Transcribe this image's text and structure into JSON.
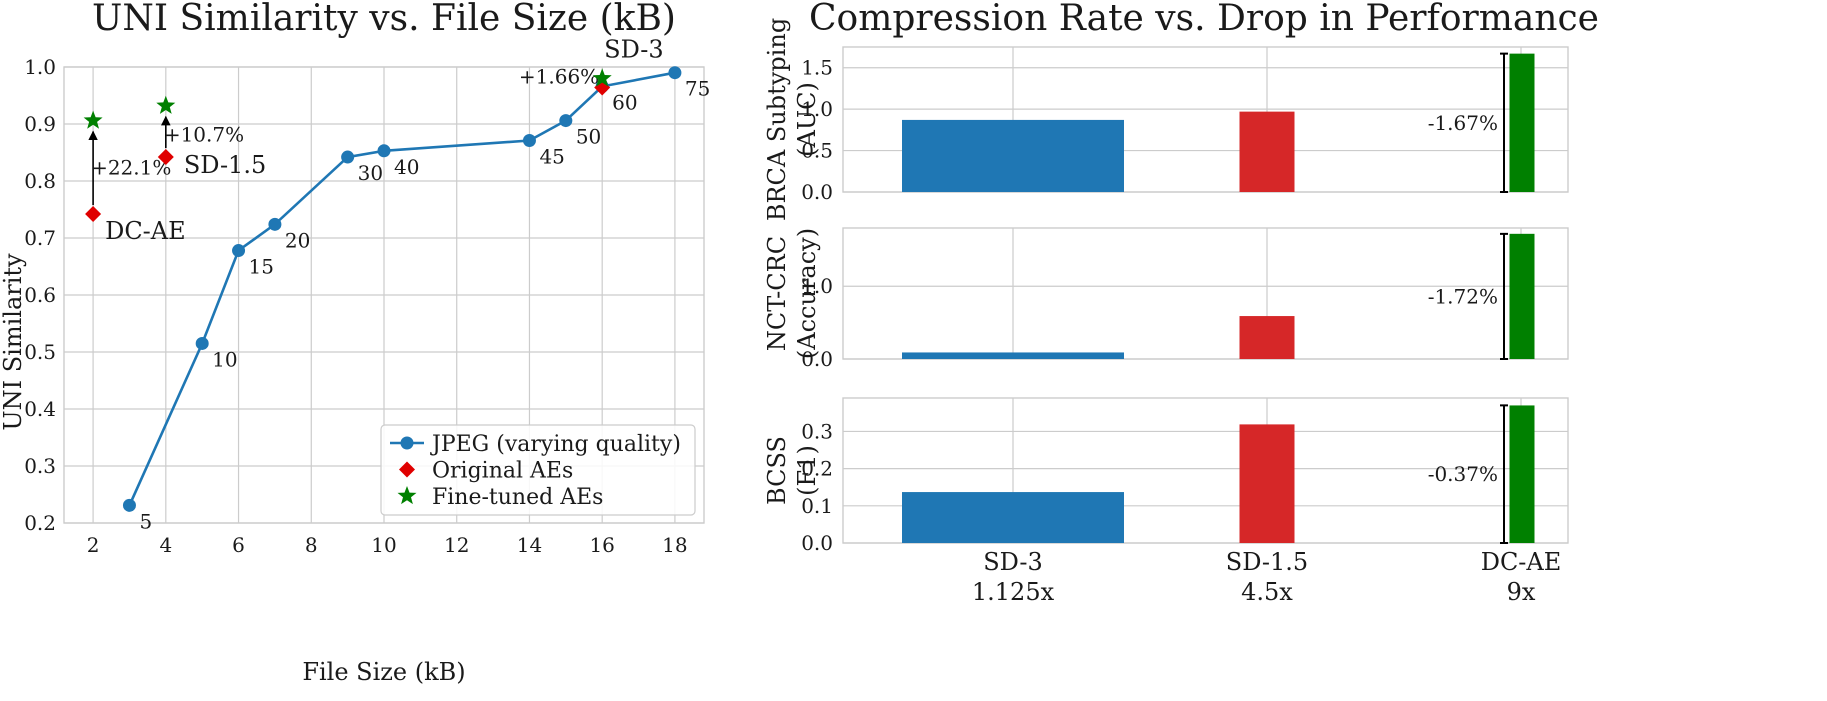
{
  "chart_data": [
    {
      "type": "scatter",
      "title": "UNI Similarity vs. File Size (kB)",
      "xlabel": "File Size (kB)",
      "ylabel": "UNI Similarity",
      "xlim": [
        1.2,
        18.8
      ],
      "ylim": [
        0.2,
        1.0
      ],
      "xticks": [
        2,
        4,
        6,
        8,
        10,
        12,
        14,
        16,
        18
      ],
      "yticks": [
        0.2,
        0.3,
        0.4,
        0.5,
        0.6,
        0.7,
        0.8,
        0.9,
        1.0
      ],
      "grid": true,
      "legend_position": "lower-right",
      "series": [
        {
          "name": "JPEG (varying quality)",
          "marker": "circle",
          "line": true,
          "color": "#1f77b4",
          "points": [
            {
              "x": 3,
              "y": 0.231,
              "label": "5"
            },
            {
              "x": 5,
              "y": 0.515,
              "label": "10"
            },
            {
              "x": 6,
              "y": 0.678,
              "label": "15"
            },
            {
              "x": 7,
              "y": 0.724,
              "label": "20"
            },
            {
              "x": 9,
              "y": 0.842,
              "label": "30"
            },
            {
              "x": 10,
              "y": 0.853,
              "label": "40"
            },
            {
              "x": 14,
              "y": 0.871,
              "label": "45"
            },
            {
              "x": 15,
              "y": 0.906,
              "label": "50"
            },
            {
              "x": 16,
              "y": 0.966,
              "label": "60"
            },
            {
              "x": 18,
              "y": 0.99,
              "label": "75"
            }
          ]
        },
        {
          "name": "Original AEs",
          "marker": "diamond",
          "line": false,
          "color": "#e00000",
          "points": [
            {
              "x": 2,
              "y": 0.742,
              "label": "DC-AE"
            },
            {
              "x": 4,
              "y": 0.842,
              "label": "SD-1.5"
            },
            {
              "x": 16,
              "y": 0.964,
              "label": "SD-3"
            }
          ]
        },
        {
          "name": "Fine-tuned AEs",
          "marker": "star",
          "line": false,
          "color": "#008000",
          "points": [
            {
              "x": 2,
              "y": 0.906
            },
            {
              "x": 4,
              "y": 0.932
            },
            {
              "x": 16,
              "y": 0.98
            }
          ]
        }
      ],
      "annotations": [
        {
          "x": 2,
          "y_from": 0.742,
          "y_to": 0.906,
          "text": "+22.1%"
        },
        {
          "x": 4,
          "y_from": 0.842,
          "y_to": 0.932,
          "text": "+10.7%"
        },
        {
          "x": 16,
          "y_from": 0.964,
          "y_to": 0.98,
          "text": "+1.66%"
        }
      ]
    },
    {
      "type": "bar",
      "title": "Compression Rate vs. Drop in Performance",
      "categories": [
        "SD-3",
        "SD-1.5",
        "DC-AE"
      ],
      "category_sublabels": [
        "1.125x",
        "4.5x",
        "9x"
      ],
      "colors": [
        "#1f77b4",
        "#d62728",
        "#008000"
      ],
      "grid": true,
      "panels": [
        {
          "ylabel": [
            "BRCA Subtyping",
            "(AUC)"
          ],
          "ylim": [
            0,
            1.75
          ],
          "yticks": [
            0.0,
            0.5,
            1.0,
            1.5
          ],
          "yticklabels": [
            "0.0",
            "0.5",
            "1.0",
            "1.5"
          ],
          "values": [
            0.87,
            0.97,
            1.67
          ],
          "bracket_label": "-1.67%"
        },
        {
          "ylabel": [
            "NCT-CRC",
            "(Accuracy)"
          ],
          "ylim": [
            0,
            1.8
          ],
          "yticks": [
            0.0,
            1.0
          ],
          "yticklabels": [
            "0.0",
            "1.0"
          ],
          "values": [
            0.09,
            0.59,
            1.72
          ],
          "bracket_label": "-1.72%"
        },
        {
          "ylabel": [
            "BCSS",
            "(F1)"
          ],
          "ylim": [
            0,
            0.39
          ],
          "yticks": [
            0.0,
            0.1,
            0.2,
            0.3
          ],
          "yticklabels": [
            "0.0",
            "0.1",
            "0.2",
            "0.3"
          ],
          "values": [
            0.137,
            0.319,
            0.37
          ],
          "bracket_label": "-0.37%"
        }
      ]
    }
  ]
}
